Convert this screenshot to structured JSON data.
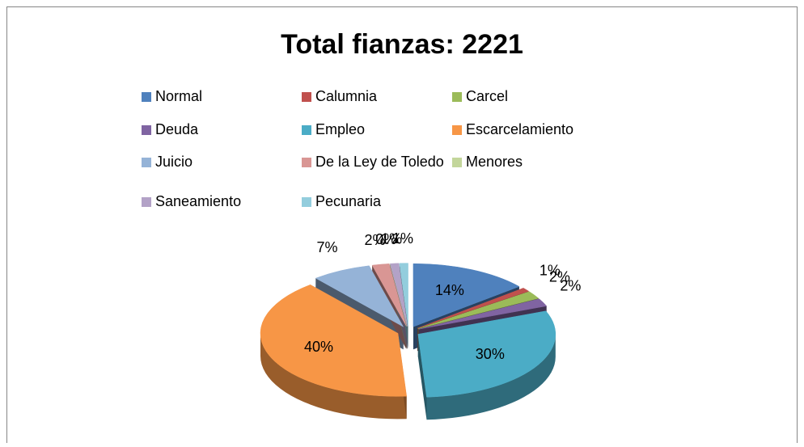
{
  "chart_data": {
    "type": "pie",
    "title": "Total fianzas: 2221",
    "categories": [
      "Normal",
      "Calumnia",
      "Carcel",
      "Deuda",
      "Empleo",
      "Escarcelamiento",
      "Juicio",
      "De la Ley de Toledo",
      "Menores",
      "Saneamiento",
      "Pecunaria"
    ],
    "values": [
      14,
      1,
      2,
      2,
      30,
      40,
      7,
      2,
      0,
      1,
      1
    ],
    "value_labels": [
      "14%",
      "1%",
      "2%",
      "2%",
      "30%",
      "40%",
      "7%",
      "2%",
      "0%",
      "1%",
      "1%"
    ],
    "colors": [
      "#4f81bd",
      "#c0504d",
      "#9bbb59",
      "#8064a2",
      "#4bacc6",
      "#f79646",
      "#95b3d7",
      "#d99694",
      "#c3d69b",
      "#b3a2c7",
      "#93cddd"
    ],
    "legend": "top"
  }
}
